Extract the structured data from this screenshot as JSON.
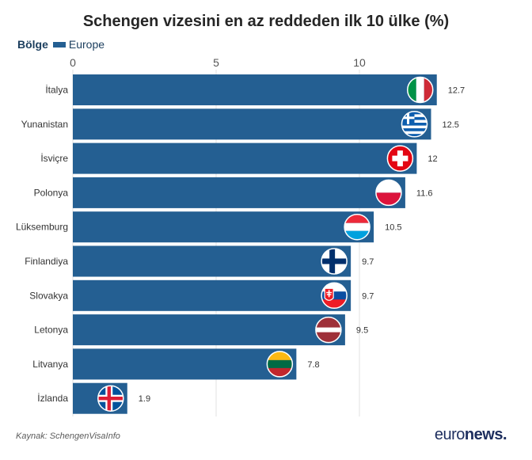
{
  "chart_data": {
    "type": "bar",
    "orientation": "horizontal",
    "title": "Schengen vizesini en az reddeden ilk 10 ülke (%)",
    "legend": {
      "title": "Bölge",
      "entries": [
        "Europe"
      ],
      "position": "top-left"
    },
    "categories": [
      "İtalya",
      "Yunanistan",
      "İsviçre",
      "Polonya",
      "Lüksemburg",
      "Finlandiya",
      "Slovakya",
      "Letonya",
      "Litvanya",
      "İzlanda"
    ],
    "series": [
      {
        "name": "Europe",
        "values": [
          12.7,
          12.5,
          12,
          11.6,
          10.5,
          9.7,
          9.7,
          9.5,
          7.8,
          1.9
        ]
      }
    ],
    "data_labels": [
      "12.7",
      "12.5",
      "12",
      "11.6",
      "10.5",
      "9.7",
      "9.7",
      "9.5",
      "7.8",
      "1.9"
    ],
    "flags": [
      "italy-flag-icon",
      "greece-flag-icon",
      "switzerland-flag-icon",
      "poland-flag-icon",
      "luxembourg-flag-icon",
      "finland-flag-icon",
      "slovakia-flag-icon",
      "latvia-flag-icon",
      "lithuania-flag-icon",
      "iceland-flag-icon"
    ],
    "xlim": [
      0,
      12.7
    ],
    "xticks": [
      0,
      5,
      10
    ],
    "xtick_labels": [
      "0",
      "5",
      "10"
    ],
    "xaxis_position": "top",
    "grid": true,
    "bar_color": "#245f92"
  },
  "source": "Kaynak: SchengenVisaInfo",
  "brand": {
    "part1": "euro",
    "part2": "news."
  }
}
